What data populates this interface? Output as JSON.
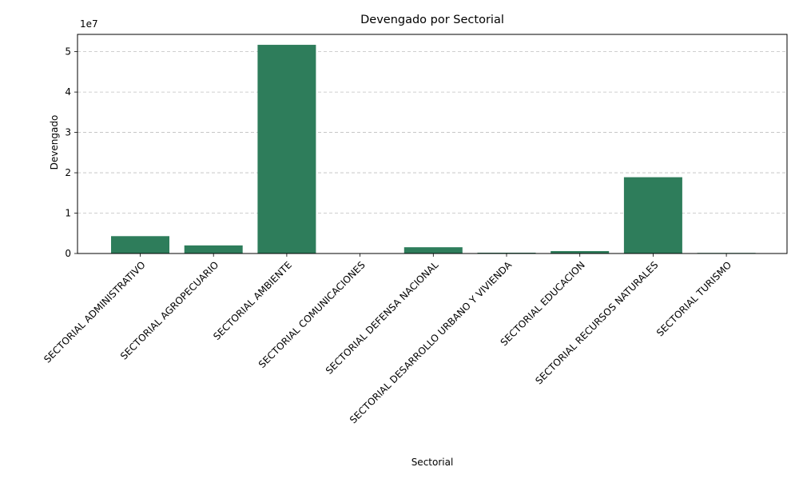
{
  "chart_data": {
    "type": "bar",
    "title": "Devengado por Sectorial",
    "xlabel": "Sectorial",
    "ylabel": "Devengado",
    "offset_label": "1e7",
    "categories": [
      "SECTORIAL ADMINISTRATIVO",
      "SECTORIAL AGROPECUARIO",
      "SECTORIAL AMBIENTE",
      "SECTORIAL COMUNICACIONES",
      "SECTORIAL DEFENSA NACIONAL",
      "SECTORIAL DESARROLLO URBANO Y VIVIENDA",
      "SECTORIAL EDUCACION",
      "SECTORIAL RECURSOS NATURALES",
      "SECTORIAL TURISMO"
    ],
    "values": [
      4300000,
      2000000,
      51700000,
      30000,
      1550000,
      200000,
      600000,
      18900000,
      150000
    ],
    "yticks": [
      0,
      10000000,
      20000000,
      30000000,
      40000000,
      50000000
    ],
    "ytick_labels": [
      "0",
      "1",
      "2",
      "3",
      "4",
      "5"
    ],
    "ylim": [
      0,
      54285000
    ],
    "grid": "y-dashed",
    "bar_color": "#2e7d5b"
  }
}
